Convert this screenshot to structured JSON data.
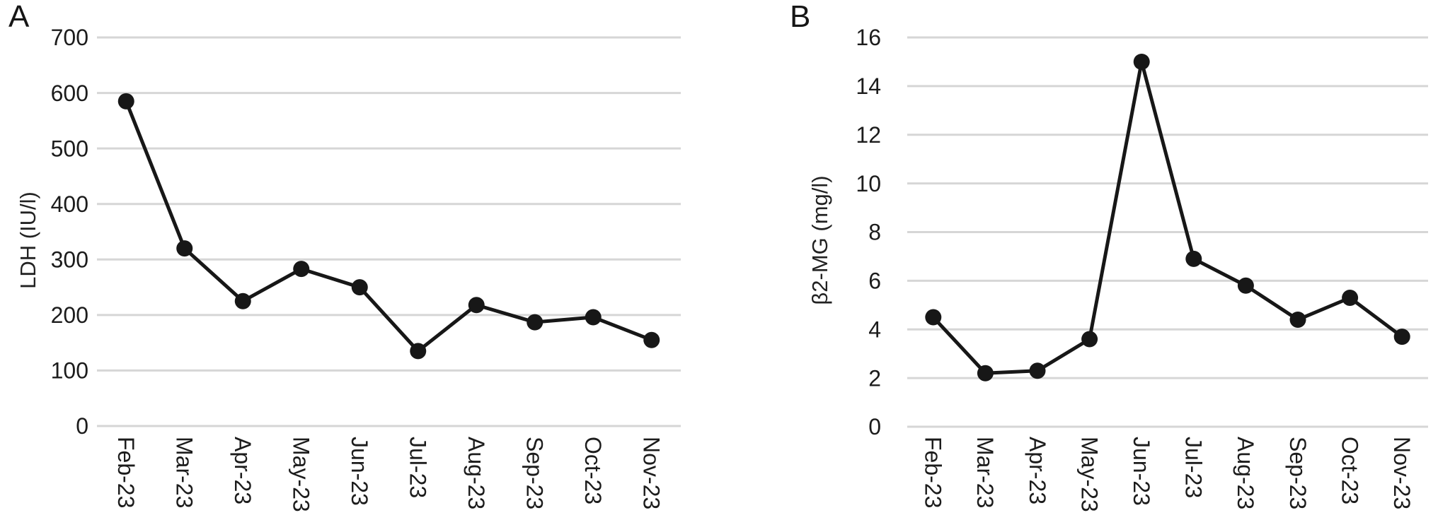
{
  "figure": {
    "background_color": "#ffffff",
    "text_color": "#1c1c1c"
  },
  "chart_data": [
    {
      "type": "line",
      "panel_label": "A",
      "ylabel": "LDH (IU/l)",
      "xlabel": "",
      "title": "",
      "categories": [
        "Feb-23",
        "Mar-23",
        "Apr-23",
        "May-23",
        "Jun-23",
        "Jul-23",
        "Aug-23",
        "Sep-23",
        "Oct-23",
        "Nov-23"
      ],
      "values": [
        585,
        320,
        225,
        283,
        250,
        135,
        218,
        187,
        196,
        155
      ],
      "ylim": [
        0,
        700
      ],
      "yticks": [
        0,
        100,
        200,
        300,
        400,
        500,
        600,
        700
      ],
      "grid": true,
      "legend": "none",
      "line_color": "#171717",
      "marker": "circle",
      "grid_color": "#d6d6d6"
    },
    {
      "type": "line",
      "panel_label": "B",
      "ylabel": "β2-MG (mg/l)",
      "xlabel": "",
      "title": "",
      "categories": [
        "Feb-23",
        "Mar-23",
        "Apr-23",
        "May-23",
        "Jun-23",
        "Jul-23",
        "Aug-23",
        "Sep-23",
        "Oct-23",
        "Nov-23"
      ],
      "values": [
        4.5,
        2.2,
        2.3,
        3.6,
        15,
        6.9,
        5.8,
        4.4,
        5.3,
        3.7
      ],
      "ylim": [
        0,
        16
      ],
      "yticks": [
        0,
        2,
        4,
        6,
        8,
        10,
        12,
        14,
        16
      ],
      "grid": true,
      "legend": "none",
      "line_color": "#171717",
      "marker": "circle",
      "grid_color": "#d6d6d6"
    }
  ]
}
